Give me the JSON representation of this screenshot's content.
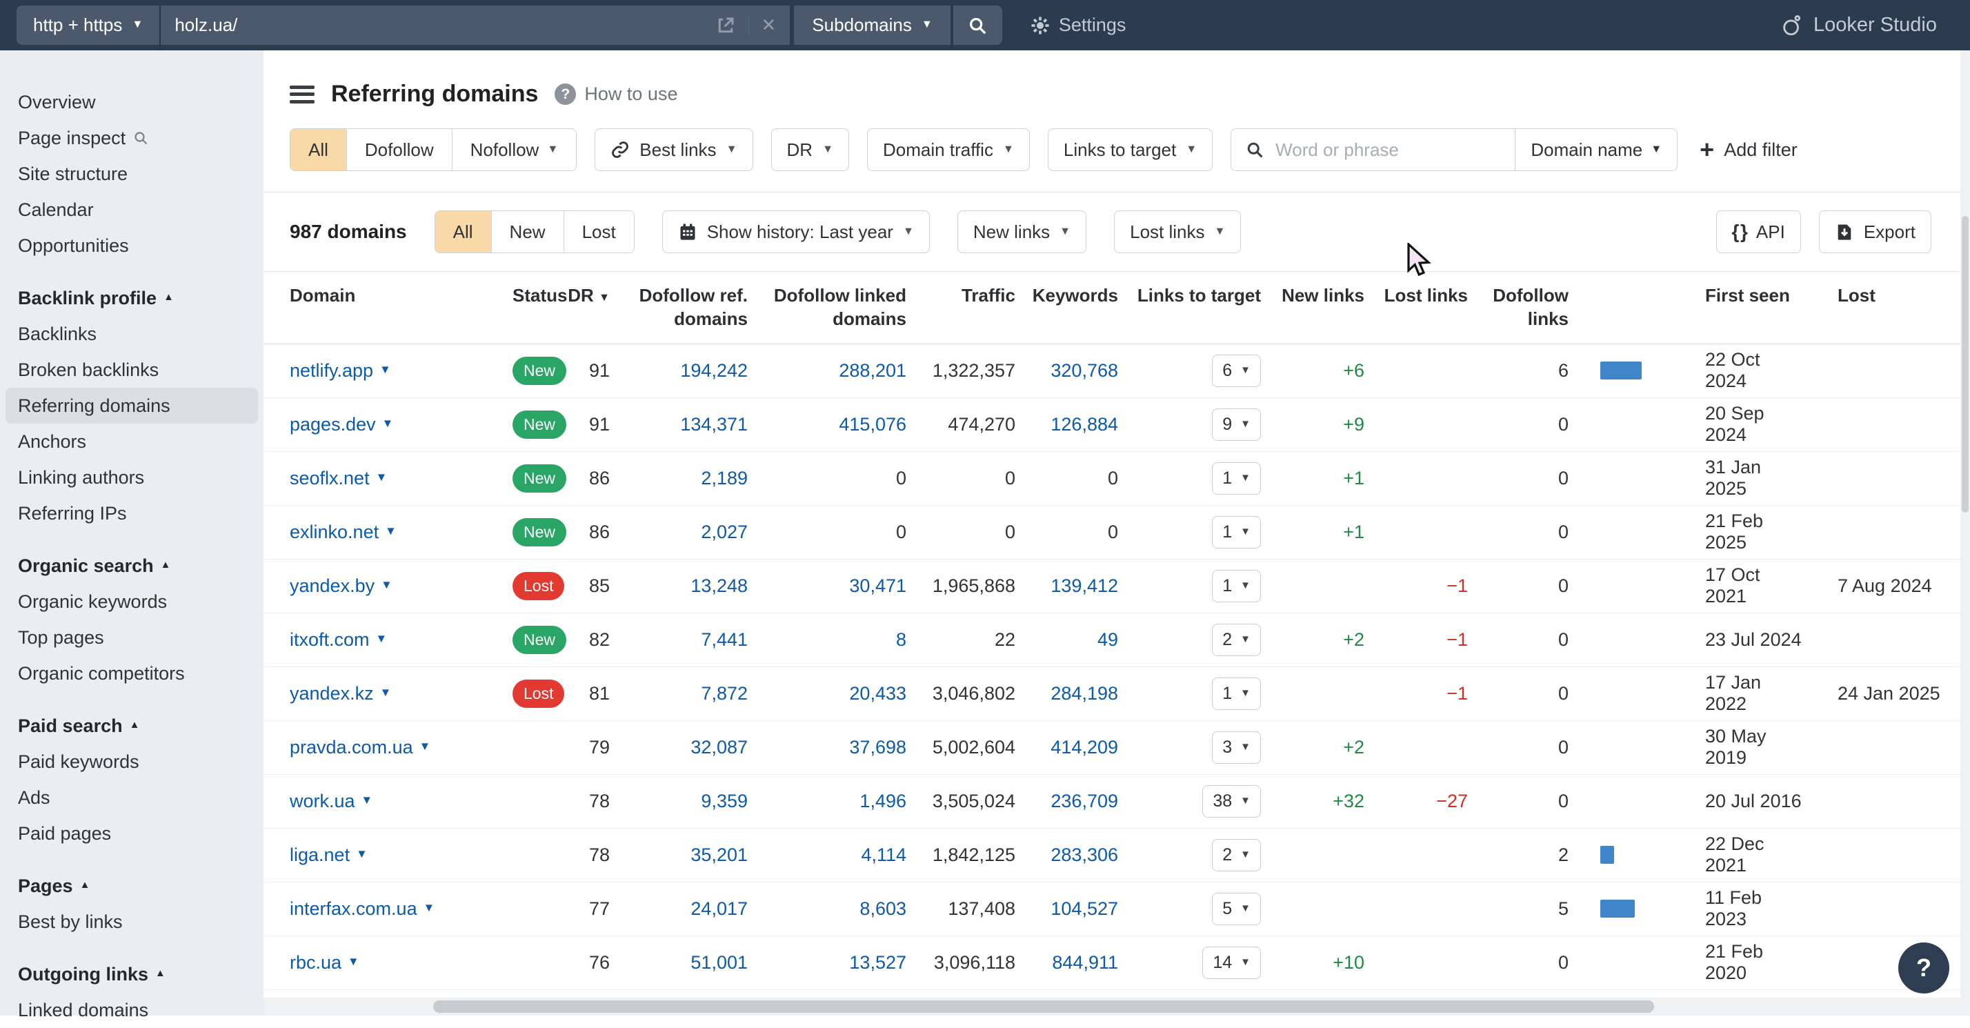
{
  "topbar": {
    "protocol_dropdown": "http + https",
    "url": "holz.ua/",
    "mode_dropdown": "Subdomains",
    "settings_label": "Settings",
    "looker_studio_label": "Looker Studio"
  },
  "sidebar": {
    "items_top": [
      "Overview",
      "Page inspect",
      "Site structure",
      "Calendar",
      "Opportunities"
    ],
    "sections": [
      {
        "title": "Backlink profile",
        "items": [
          "Backlinks",
          "Broken backlinks",
          "Referring domains",
          "Anchors",
          "Linking authors",
          "Referring IPs"
        ],
        "selected": "Referring domains"
      },
      {
        "title": "Organic search",
        "items": [
          "Organic keywords",
          "Top pages",
          "Organic competitors"
        ]
      },
      {
        "title": "Paid search",
        "items": [
          "Paid keywords",
          "Ads",
          "Paid pages"
        ]
      },
      {
        "title": "Pages",
        "items": [
          "Best by links"
        ]
      },
      {
        "title": "Outgoing links",
        "items": [
          "Linked domains"
        ]
      }
    ]
  },
  "header": {
    "title": "Referring domains",
    "help_label": "How to use"
  },
  "filters": {
    "segmented": [
      "All",
      "Dofollow",
      "Nofollow"
    ],
    "selected": "All",
    "best_links": "Best links",
    "dr": "DR",
    "domain_traffic": "Domain traffic",
    "links_to_target": "Links to target",
    "search_placeholder": "Word or phrase",
    "domain_name": "Domain name",
    "add_filter": "Add filter"
  },
  "toolbar": {
    "count": "987 domains",
    "segmented": [
      "All",
      "New",
      "Lost"
    ],
    "selected": "All",
    "show_history": "Show history: Last year",
    "new_links": "New links",
    "lost_links": "Lost links",
    "api": "API",
    "export": "Export"
  },
  "table": {
    "columns": [
      "Domain",
      "Status",
      "DR",
      "Dofollow ref. domains",
      "Dofollow linked domains",
      "Traffic",
      "Keywords",
      "Links to target",
      "New links",
      "Lost links",
      "Dofollow links",
      "First seen",
      "Lost"
    ],
    "rows": [
      {
        "domain": "netlify.app",
        "status": "New",
        "dr": "91",
        "dofollow_ref": "194,242",
        "dofollow_linked": "288,201",
        "traffic": "1,322,357",
        "keywords": "320,768",
        "links_to_target": "6",
        "new_links": "+6",
        "lost_links": "",
        "dofollow_links": "6",
        "first_seen": "22 Oct 2024",
        "lost": ""
      },
      {
        "domain": "pages.dev",
        "status": "New",
        "dr": "91",
        "dofollow_ref": "134,371",
        "dofollow_linked": "415,076",
        "traffic": "474,270",
        "keywords": "126,884",
        "links_to_target": "9",
        "new_links": "+9",
        "lost_links": "",
        "dofollow_links": "0",
        "first_seen": "20 Sep 2024",
        "lost": ""
      },
      {
        "domain": "seoflx.net",
        "status": "New",
        "dr": "86",
        "dofollow_ref": "2,189",
        "dofollow_linked": "0",
        "traffic": "0",
        "keywords": "0",
        "links_to_target": "1",
        "new_links": "+1",
        "lost_links": "",
        "dofollow_links": "0",
        "first_seen": "31 Jan 2025",
        "lost": ""
      },
      {
        "domain": "exlinko.net",
        "status": "New",
        "dr": "86",
        "dofollow_ref": "2,027",
        "dofollow_linked": "0",
        "traffic": "0",
        "keywords": "0",
        "links_to_target": "1",
        "new_links": "+1",
        "lost_links": "",
        "dofollow_links": "0",
        "first_seen": "21 Feb 2025",
        "lost": ""
      },
      {
        "domain": "yandex.by",
        "status": "Lost",
        "dr": "85",
        "dofollow_ref": "13,248",
        "dofollow_linked": "30,471",
        "traffic": "1,965,868",
        "keywords": "139,412",
        "links_to_target": "1",
        "new_links": "",
        "lost_links": "−1",
        "dofollow_links": "0",
        "first_seen": "17 Oct 2021",
        "lost": "7 Aug 2024"
      },
      {
        "domain": "itxoft.com",
        "status": "New",
        "dr": "82",
        "dofollow_ref": "7,441",
        "dofollow_linked": "8",
        "traffic": "22",
        "keywords": "49",
        "links_to_target": "2",
        "new_links": "+2",
        "lost_links": "−1",
        "dofollow_links": "0",
        "first_seen": "23 Jul 2024",
        "lost": ""
      },
      {
        "domain": "yandex.kz",
        "status": "Lost",
        "dr": "81",
        "dofollow_ref": "7,872",
        "dofollow_linked": "20,433",
        "traffic": "3,046,802",
        "keywords": "284,198",
        "links_to_target": "1",
        "new_links": "",
        "lost_links": "−1",
        "dofollow_links": "0",
        "first_seen": "17 Jan 2022",
        "lost": "24 Jan 2025"
      },
      {
        "domain": "pravda.com.ua",
        "status": "",
        "dr": "79",
        "dofollow_ref": "32,087",
        "dofollow_linked": "37,698",
        "traffic": "5,002,604",
        "keywords": "414,209",
        "links_to_target": "3",
        "new_links": "+2",
        "lost_links": "",
        "dofollow_links": "0",
        "first_seen": "30 May 2019",
        "lost": ""
      },
      {
        "domain": "work.ua",
        "status": "",
        "dr": "78",
        "dofollow_ref": "9,359",
        "dofollow_linked": "1,496",
        "traffic": "3,505,024",
        "keywords": "236,709",
        "links_to_target": "38",
        "new_links": "+32",
        "lost_links": "−27",
        "dofollow_links": "0",
        "first_seen": "20 Jul 2016",
        "lost": ""
      },
      {
        "domain": "liga.net",
        "status": "",
        "dr": "78",
        "dofollow_ref": "35,201",
        "dofollow_linked": "4,114",
        "traffic": "1,842,125",
        "keywords": "283,306",
        "links_to_target": "2",
        "new_links": "",
        "lost_links": "",
        "dofollow_links": "2",
        "first_seen": "22 Dec 2021",
        "lost": ""
      },
      {
        "domain": "interfax.com.ua",
        "status": "",
        "dr": "77",
        "dofollow_ref": "24,017",
        "dofollow_linked": "8,603",
        "traffic": "137,408",
        "keywords": "104,527",
        "links_to_target": "5",
        "new_links": "",
        "lost_links": "",
        "dofollow_links": "5",
        "first_seen": "11 Feb 2023",
        "lost": ""
      },
      {
        "domain": "rbc.ua",
        "status": "",
        "dr": "76",
        "dofollow_ref": "51,001",
        "dofollow_linked": "13,527",
        "traffic": "3,096,118",
        "keywords": "844,911",
        "links_to_target": "14",
        "new_links": "+10",
        "lost_links": "",
        "dofollow_links": "0",
        "first_seen": "21 Feb 2020",
        "lost": ""
      }
    ]
  },
  "misc": {
    "help_fab": "?"
  },
  "colors": {
    "topbar": "#2d3b4f",
    "accent_orange": "#f9d9a8",
    "link_blue": "#0d5aa8",
    "badge_new": "#29a566",
    "badge_lost": "#e23a31",
    "bar_blue": "#3e86c8"
  }
}
